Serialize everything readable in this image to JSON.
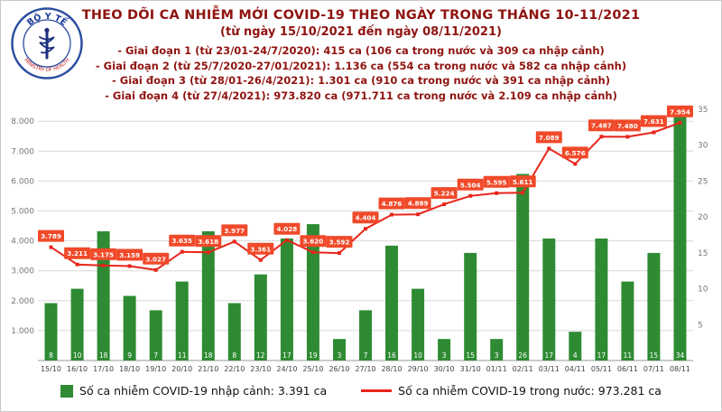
{
  "colors": {
    "title": "#8f1410",
    "bar": "#2f8b33",
    "line": "#e8251b",
    "line_label_bg": "#f04a2a",
    "grid": "#d8d8d8",
    "axis_text": "#777777",
    "date_text": "#444444"
  },
  "logo": {
    "top_text": "BỘ Y TẾ",
    "bottom_text": "MINISTRY OF HEALTH"
  },
  "header": {
    "title": "THEO DÕI CA NHIỄM MỚI COVID-19 THEO NGÀY TRONG THÁNG 10-11/2021",
    "subtitle": "(từ ngày 15/10/2021 đến ngày 08/11/2021)",
    "stages": [
      "- Giai đoạn 1 (từ 23/01-24/7/2020): 415 ca (106 ca trong nước và 309 ca nhập cảnh)",
      "- Giai đoạn 2 (từ 25/7/2020-27/01/2021): 1.136 ca (554 ca trong nước và 582 ca nhập cảnh)",
      "- Giai đoạn 3 (từ 28/01-26/4/2021): 1.301 ca (910 ca trong nước và 391 ca nhập cảnh)",
      "- Giai đoạn 4 (từ 27/4/2021): 973.820 ca (971.711 ca trong nước và 2.109 ca nhập cảnh)"
    ]
  },
  "chart_data": {
    "type": "bar",
    "subtype": "bar+line combo, dual axis",
    "categories": [
      "15/10",
      "16/10",
      "17/10",
      "18/10",
      "19/10",
      "20/10",
      "21/10",
      "22/10",
      "23/10",
      "24/10",
      "25/10",
      "26/10",
      "27/10",
      "28/10",
      "29/10",
      "30/10",
      "31/10",
      "01/11",
      "02/11",
      "03/11",
      "04/11",
      "05/11",
      "06/11",
      "07/11",
      "08/11"
    ],
    "series": [
      {
        "name": "Số ca nhiễm COVID-19 nhập cảnh",
        "type": "bar",
        "axis": "right",
        "values": [
          8,
          10,
          18,
          9,
          7,
          11,
          18,
          8,
          12,
          17,
          19,
          3,
          7,
          16,
          10,
          3,
          15,
          3,
          26,
          17,
          4,
          17,
          11,
          15,
          34
        ]
      },
      {
        "name": "Số ca nhiễm COVID-19 trong nước",
        "type": "line",
        "axis": "left",
        "values": [
          3789,
          3211,
          3175,
          3159,
          3027,
          3635,
          3618,
          3977,
          3361,
          4028,
          3620,
          3592,
          4404,
          4876,
          4889,
          5224,
          5504,
          5595,
          5611,
          7089,
          6576,
          7487,
          7480,
          7631,
          7954
        ],
        "labels": [
          "3.789",
          "3.211",
          "3.175",
          "3.159",
          "3.027",
          "3.635",
          "3.618",
          "3.977",
          "3.361",
          "4.028",
          "3.620",
          "3.592",
          "4.404",
          "4.876",
          "4.889",
          "5.224",
          "5.504",
          "5.595",
          "5.611",
          "7.089",
          "6.576",
          "7.487",
          "7.480",
          "7.631",
          "7.954"
        ]
      }
    ],
    "left_axis": {
      "max": 8400,
      "tick_step": 1000,
      "ticks": [
        "1.000",
        "2.000",
        "3.000",
        "4.000",
        "5.000",
        "6.000",
        "7.000",
        "8.000"
      ]
    },
    "right_axis": {
      "max": 35,
      "ticks": [
        5,
        10,
        15,
        20,
        25,
        30,
        35
      ]
    },
    "grid": true,
    "legend_position": "bottom"
  },
  "legend": [
    {
      "swatch": "bar",
      "label": "Số ca nhiễm COVID-19 nhập cảnh: 3.391 ca"
    },
    {
      "swatch": "line",
      "label": "Số ca nhiễm COVID-19 trong nước: 973.281 ca"
    }
  ]
}
